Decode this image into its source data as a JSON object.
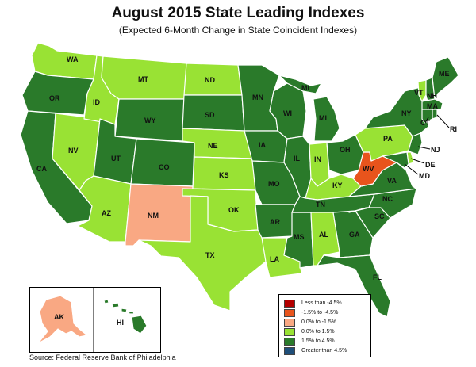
{
  "title": "August 2015 State Leading Indexes",
  "subtitle": "(Expected 6-Month Change in State Coincident Indexes)",
  "source": "Source: Federal Reserve Bank of Philadelphia",
  "colors": {
    "less_than_-4.5": "#b30000",
    "-1.5_to_-4.5": "#e8541c",
    "0.0_to_-1.5": "#f9a883",
    "0.0_to_1.5": "#99e234",
    "1.5_to_4.5": "#2a7a2a",
    "greater_than_4.5": "#1f4e79"
  },
  "legend": [
    {
      "label": "Less than -4.5%",
      "color": "#b30000"
    },
    {
      "label": "-1.5% to -4.5%",
      "color": "#e8541c"
    },
    {
      "label": "0.0% to -1.5%",
      "color": "#f9a883"
    },
    {
      "label": "0.0% to  1.5%",
      "color": "#99e234"
    },
    {
      "label": "1.5% to  4.5%",
      "color": "#2a7a2a"
    },
    {
      "label": "Greater than 4.5%",
      "color": "#1f4e79"
    }
  ],
  "states": [
    {
      "abbr": "WA",
      "category": "0.0_to_1.5"
    },
    {
      "abbr": "OR",
      "category": "1.5_to_4.5"
    },
    {
      "abbr": "CA",
      "category": "1.5_to_4.5"
    },
    {
      "abbr": "NV",
      "category": "0.0_to_1.5"
    },
    {
      "abbr": "ID",
      "category": "0.0_to_1.5"
    },
    {
      "abbr": "MT",
      "category": "0.0_to_1.5"
    },
    {
      "abbr": "WY",
      "category": "1.5_to_4.5"
    },
    {
      "abbr": "UT",
      "category": "1.5_to_4.5"
    },
    {
      "abbr": "AZ",
      "category": "0.0_to_1.5"
    },
    {
      "abbr": "CO",
      "category": "1.5_to_4.5"
    },
    {
      "abbr": "NM",
      "category": "0.0_to_-1.5"
    },
    {
      "abbr": "ND",
      "category": "0.0_to_1.5"
    },
    {
      "abbr": "SD",
      "category": "1.5_to_4.5"
    },
    {
      "abbr": "NE",
      "category": "0.0_to_1.5"
    },
    {
      "abbr": "KS",
      "category": "0.0_to_1.5"
    },
    {
      "abbr": "OK",
      "category": "0.0_to_1.5"
    },
    {
      "abbr": "TX",
      "category": "0.0_to_1.5"
    },
    {
      "abbr": "MN",
      "category": "1.5_to_4.5"
    },
    {
      "abbr": "IA",
      "category": "1.5_to_4.5"
    },
    {
      "abbr": "MO",
      "category": "1.5_to_4.5"
    },
    {
      "abbr": "AR",
      "category": "1.5_to_4.5"
    },
    {
      "abbr": "LA",
      "category": "0.0_to_1.5"
    },
    {
      "abbr": "WI",
      "category": "1.5_to_4.5"
    },
    {
      "abbr": "IL",
      "category": "1.5_to_4.5"
    },
    {
      "abbr": "MS",
      "category": "1.5_to_4.5"
    },
    {
      "abbr": "MI",
      "category": "1.5_to_4.5"
    },
    {
      "abbr": "IN",
      "category": "0.0_to_1.5"
    },
    {
      "abbr": "KY",
      "category": "0.0_to_1.5"
    },
    {
      "abbr": "TN",
      "category": "1.5_to_4.5"
    },
    {
      "abbr": "AL",
      "category": "0.0_to_1.5"
    },
    {
      "abbr": "OH",
      "category": "1.5_to_4.5"
    },
    {
      "abbr": "WV",
      "category": "-1.5_to_-4.5"
    },
    {
      "abbr": "VA",
      "category": "1.5_to_4.5"
    },
    {
      "abbr": "NC",
      "category": "1.5_to_4.5"
    },
    {
      "abbr": "SC",
      "category": "1.5_to_4.5"
    },
    {
      "abbr": "GA",
      "category": "1.5_to_4.5"
    },
    {
      "abbr": "FL",
      "category": "1.5_to_4.5"
    },
    {
      "abbr": "PA",
      "category": "0.0_to_1.5"
    },
    {
      "abbr": "NY",
      "category": "1.5_to_4.5"
    },
    {
      "abbr": "VT",
      "category": "0.0_to_1.5"
    },
    {
      "abbr": "NH",
      "category": "1.5_to_4.5"
    },
    {
      "abbr": "ME",
      "category": "1.5_to_4.5"
    },
    {
      "abbr": "MA",
      "category": "1.5_to_4.5"
    },
    {
      "abbr": "CT",
      "category": "1.5_to_4.5"
    },
    {
      "abbr": "RI",
      "category": "1.5_to_4.5"
    },
    {
      "abbr": "NJ",
      "category": "1.5_to_4.5"
    },
    {
      "abbr": "DE",
      "category": "0.0_to_1.5"
    },
    {
      "abbr": "MD",
      "category": "1.5_to_4.5"
    },
    {
      "abbr": "AK",
      "category": "0.0_to_-1.5"
    },
    {
      "abbr": "HI",
      "category": "1.5_to_4.5"
    }
  ]
}
